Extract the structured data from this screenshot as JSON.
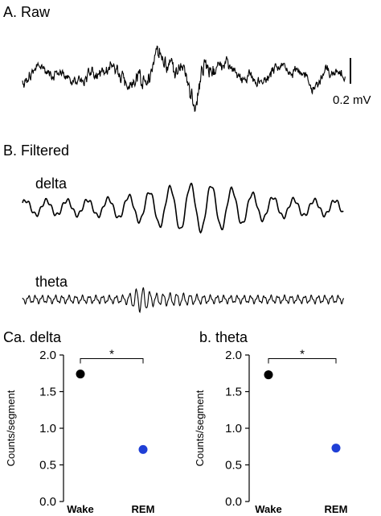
{
  "panel_labels": {
    "raw": "A. Raw",
    "filtered": "B. Filtered",
    "delta_bar": "Ca. delta",
    "theta_bar": "b. theta"
  },
  "traces": {
    "delta_label": "delta",
    "theta_label": "theta",
    "scale_label": "0.2 mV"
  },
  "colors": {
    "trace": "#000000",
    "wake": "#000000",
    "rem": "#1f3fd6"
  },
  "chart_data": [
    {
      "type": "scatter",
      "title": "Ca. delta",
      "xlabel": "",
      "ylabel": "Counts/segment",
      "categories": [
        "Wake",
        "REM"
      ],
      "category_colors": [
        "#000000",
        "#1f3fd6"
      ],
      "values": [
        1.74,
        0.71
      ],
      "errors": [
        0.03,
        0.03
      ],
      "ylim": [
        0.0,
        2.0
      ],
      "yticks": [
        "0.0",
        "0.5",
        "1.0",
        "1.5",
        "2.0"
      ],
      "significance": "*"
    },
    {
      "type": "scatter",
      "title": "b. theta",
      "xlabel": "",
      "ylabel": "Counts/segment",
      "categories": [
        "Wake",
        "REM"
      ],
      "category_colors": [
        "#000000",
        "#1f3fd6"
      ],
      "values": [
        1.73,
        0.73
      ],
      "errors": [
        0.06,
        0.03
      ],
      "ylim": [
        0.0,
        2.0
      ],
      "yticks": [
        "0.0",
        "0.5",
        "1.0",
        "1.5",
        "2.0"
      ],
      "significance": "*"
    }
  ]
}
